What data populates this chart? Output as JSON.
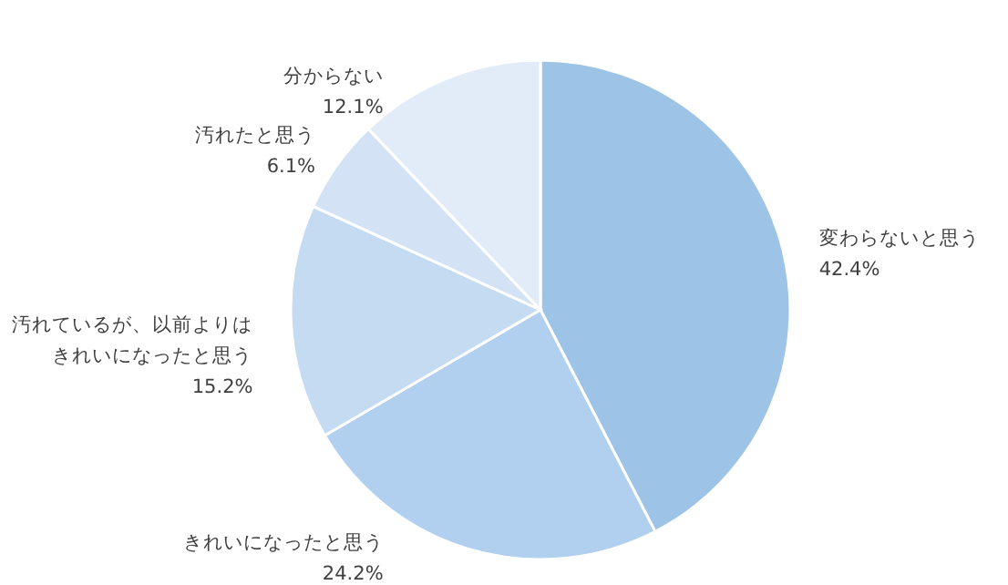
{
  "chart_data": {
    "type": "pie",
    "categories": [
      "変わらないと思う",
      "きれいになったと思う",
      "汚れているが、以前よりはきれいになったと思う",
      "汚れたと思う",
      "分からない"
    ],
    "values": [
      42.4,
      24.2,
      15.2,
      6.1,
      12.1
    ],
    "value_labels": [
      "42.4%",
      "24.2%",
      "15.2%",
      "6.1%",
      "12.1%"
    ],
    "colors": [
      "#9dc3e6",
      "#b1cfee",
      "#c5dbf2",
      "#d3e3f5",
      "#e2ecf8"
    ]
  }
}
